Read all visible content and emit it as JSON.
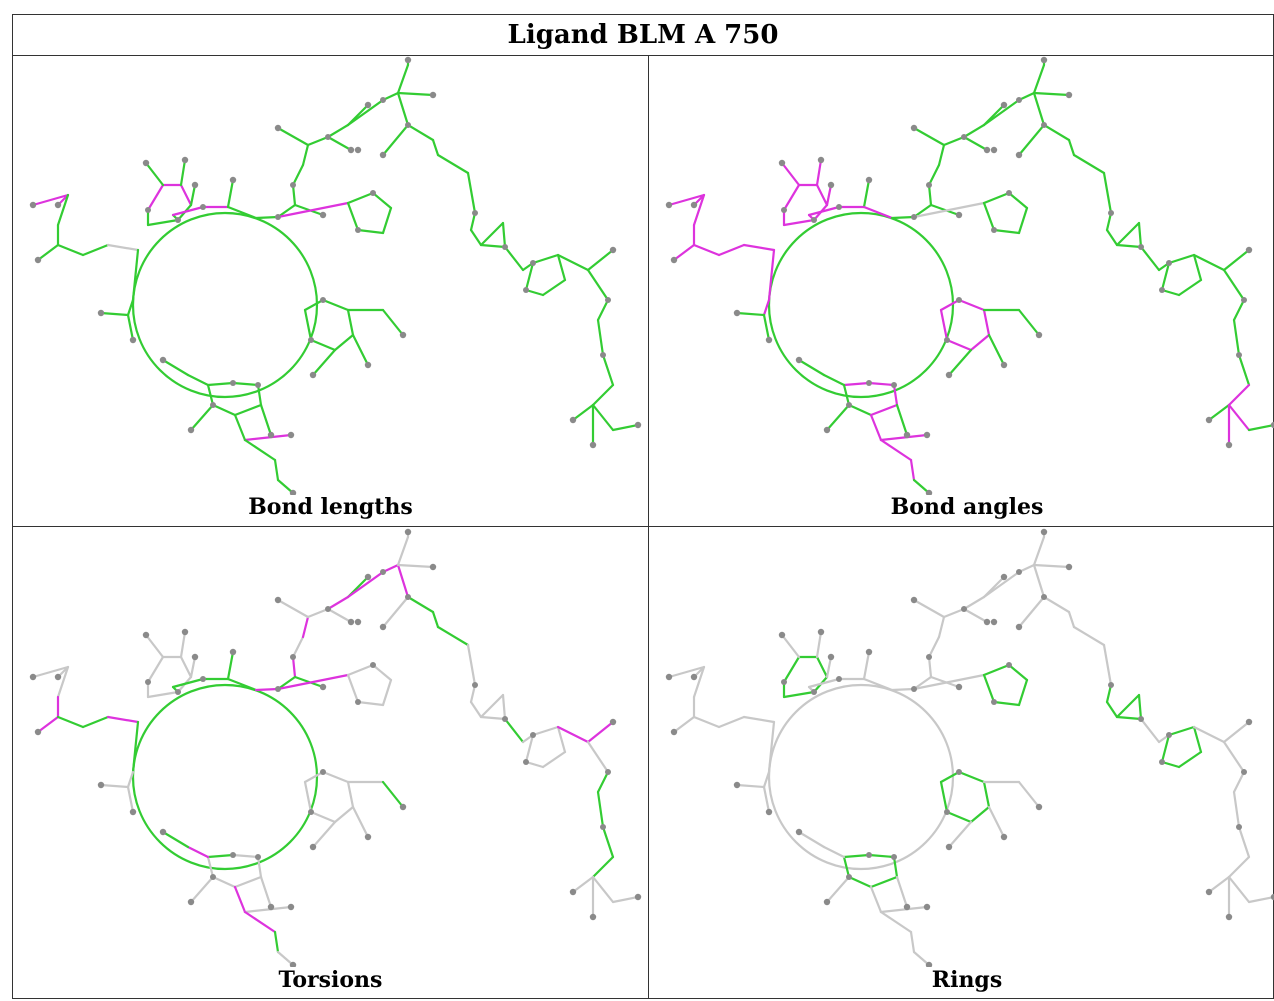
{
  "title": "Ligand BLM A 750",
  "panels": [
    {
      "caption": "Bond lengths"
    },
    {
      "caption": "Bond angles"
    },
    {
      "caption": "Torsions"
    },
    {
      "caption": "Rings"
    }
  ],
  "colors": {
    "green": "#33cc33",
    "magenta": "#dd33dd",
    "grey": "#c8c8c8",
    "atom": "#8a8a8a"
  }
}
